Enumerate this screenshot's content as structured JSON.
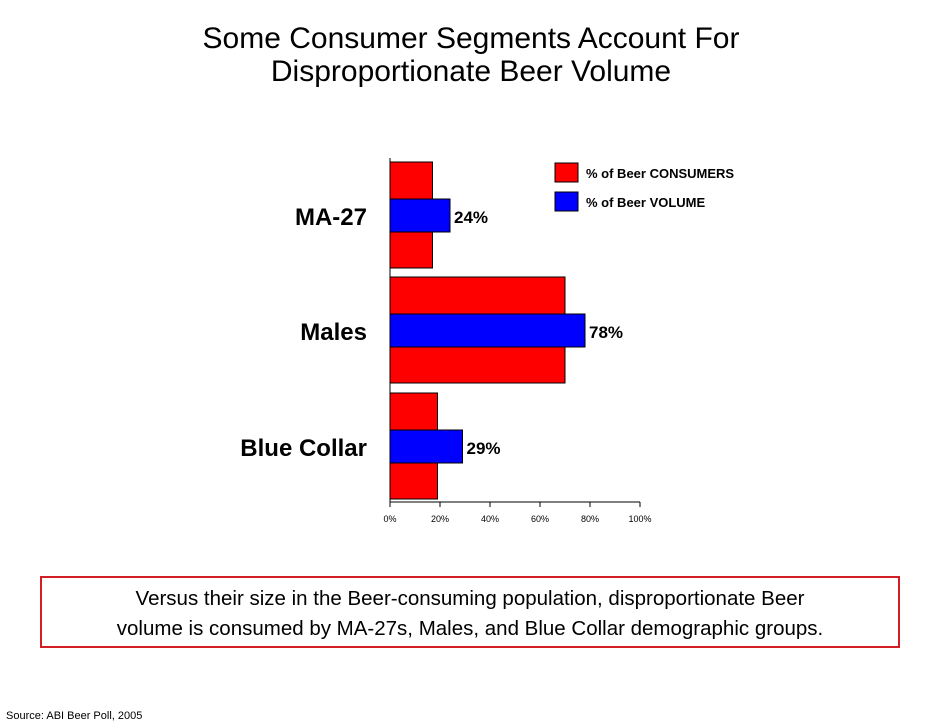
{
  "title": {
    "line1": "Some Consumer Segments Account For",
    "line2": "Disproportionate Beer Volume"
  },
  "chart_data": {
    "type": "bar",
    "orientation": "horizontal",
    "categories": [
      "MA-27",
      "Males",
      "Blue Collar"
    ],
    "series": [
      {
        "name": "% of Beer CONSUMERS",
        "color": "#ff0000",
        "values": [
          17,
          70,
          19
        ]
      },
      {
        "name": "% of Beer VOLUME",
        "color": "#0000ff",
        "values": [
          24,
          78,
          29
        ]
      }
    ],
    "data_labels": [
      "24%",
      "78%",
      "29%"
    ],
    "xlim": [
      0,
      100
    ],
    "xticks": [
      0,
      20,
      40,
      60,
      80,
      100
    ],
    "xtick_labels": [
      "0%",
      "20%",
      "40%",
      "60%",
      "80%",
      "100%"
    ],
    "legend": "top-right",
    "grid": false
  },
  "callout": {
    "line1": "Versus their size in the Beer-consuming population, disproportionate Beer",
    "line2": "volume is consumed by MA-27s, Males, and Blue Collar demographic groups."
  },
  "source": "Source: ABI Beer Poll, 2005",
  "colors": {
    "consumers": "#ff0000",
    "volume": "#0000ff",
    "callout_border": "#d21f26"
  }
}
